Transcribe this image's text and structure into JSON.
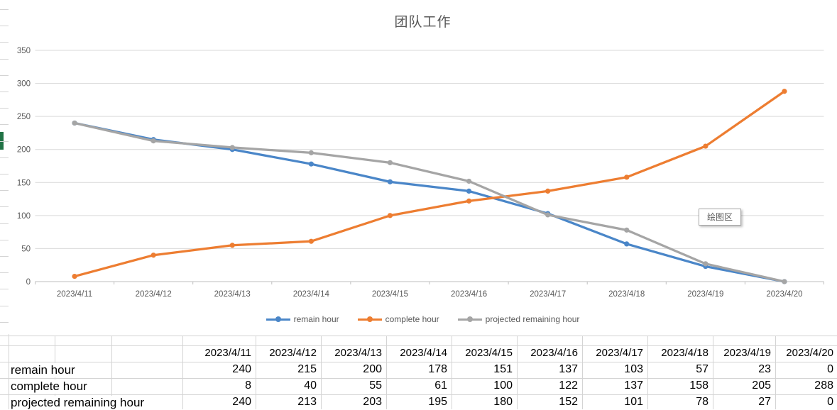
{
  "chart_data": {
    "type": "line",
    "title": "团队工作",
    "categories": [
      "2023/4/11",
      "2023/4/12",
      "2023/4/13",
      "2023/4/14",
      "2023/4/15",
      "2023/4/16",
      "2023/4/17",
      "2023/4/18",
      "2023/4/19",
      "2023/4/20"
    ],
    "series": [
      {
        "name": "remain hour",
        "color": "#4a86c8",
        "values": [
          240,
          215,
          200,
          178,
          151,
          137,
          103,
          57,
          23,
          0
        ]
      },
      {
        "name": "complete hour",
        "color": "#ed7d31",
        "values": [
          8,
          40,
          55,
          61,
          100,
          122,
          137,
          158,
          205,
          288
        ]
      },
      {
        "name": "projected remaining hour",
        "color": "#a5a5a5",
        "values": [
          240,
          213,
          203,
          195,
          180,
          152,
          101,
          78,
          27,
          0
        ]
      }
    ],
    "ylim": [
      0,
      350
    ],
    "yticks": [
      0,
      50,
      100,
      150,
      200,
      250,
      300,
      350
    ],
    "xlabel": "",
    "ylabel": "",
    "grid": true,
    "legend_position": "bottom"
  },
  "tooltip": {
    "text": "绘图区"
  },
  "table": {
    "columns": [
      "2023/4/11",
      "2023/4/12",
      "2023/4/13",
      "2023/4/14",
      "2023/4/15",
      "2023/4/16",
      "2023/4/17",
      "2023/4/18",
      "2023/4/19",
      "2023/4/20"
    ],
    "rows": [
      {
        "label": "remain hour",
        "values": [
          240,
          215,
          200,
          178,
          151,
          137,
          103,
          57,
          23,
          0
        ]
      },
      {
        "label": "complete hour",
        "values": [
          8,
          40,
          55,
          61,
          100,
          122,
          137,
          158,
          205,
          288
        ]
      },
      {
        "label": "projected remaining hour",
        "values": [
          240,
          213,
          203,
          195,
          180,
          152,
          101,
          78,
          27,
          0
        ]
      }
    ]
  },
  "sheet": {
    "selection_color": "#217346"
  }
}
